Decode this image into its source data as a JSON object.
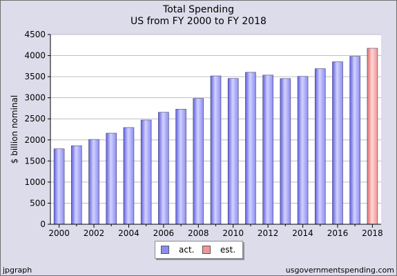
{
  "chart_data": {
    "type": "bar",
    "title": "Total Spending",
    "subtitle": "US from FY 2000 to FY 2018",
    "ylabel": "$ billion nominal",
    "xlabel": "",
    "ylim": [
      0,
      4500
    ],
    "yticks": [
      0,
      500,
      1000,
      1500,
      2000,
      2500,
      3000,
      3500,
      4000,
      4500
    ],
    "grid": true,
    "legend_placement": "bottom-center",
    "categories": [
      "2000",
      "2001",
      "2002",
      "2003",
      "2004",
      "2005",
      "2006",
      "2007",
      "2008",
      "2009",
      "2010",
      "2011",
      "2012",
      "2013",
      "2014",
      "2015",
      "2016",
      "2017",
      "2018"
    ],
    "x_tick_labels": [
      "2000",
      "2002",
      "2004",
      "2006",
      "2008",
      "2010",
      "2012",
      "2014",
      "2016",
      "2018"
    ],
    "series": [
      {
        "name": "act.",
        "color": "#8c8cf2",
        "values": [
          1789,
          1863,
          2011,
          2160,
          2293,
          2472,
          2655,
          2729,
          2983,
          3518,
          3457,
          3603,
          3537,
          3455,
          3506,
          3689,
          3853,
          3982,
          null
        ]
      },
      {
        "name": "est.",
        "color": "#f29595",
        "values": [
          null,
          null,
          null,
          null,
          null,
          null,
          null,
          null,
          null,
          null,
          null,
          null,
          null,
          null,
          null,
          null,
          null,
          null,
          4173
        ]
      }
    ]
  },
  "footer": {
    "left": "jpgraph",
    "right": "usgovernmentspending.com"
  }
}
